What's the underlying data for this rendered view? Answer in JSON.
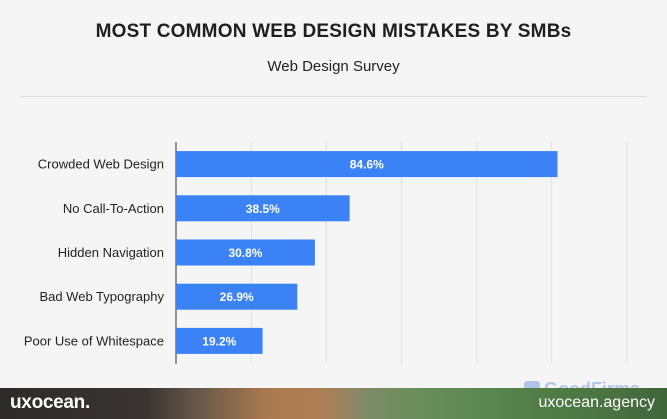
{
  "header": {
    "title": "MOST COMMON WEB DESIGN MISTAKES BY SMBs",
    "subtitle": "Web Design Survey"
  },
  "chart_data": {
    "type": "bar",
    "orientation": "horizontal",
    "title": "MOST COMMON WEB DESIGN MISTAKES BY SMBs",
    "subtitle": "Web Design Survey",
    "categories": [
      "Crowded Web Design",
      "No Call-To-Action",
      "Hidden Navigation",
      "Bad Web Typography",
      "Poor Use of Whitespace"
    ],
    "values": [
      84.6,
      38.5,
      30.8,
      26.9,
      19.2
    ],
    "value_labels": [
      "84.6%",
      "38.5%",
      "30.8%",
      "26.9%",
      "19.2%"
    ],
    "xlim": [
      0,
      100
    ],
    "gridlines": [
      0,
      16.7,
      33.3,
      50,
      66.7,
      83.3,
      100
    ],
    "bar_color": "#3b82f6",
    "grid_color": "#e0e0e0",
    "xlabel": "",
    "ylabel": ""
  },
  "watermark": {
    "text": "GoodFirms"
  },
  "footer": {
    "brand_left": "uxocean.",
    "brand_right": "uxocean.agency"
  }
}
